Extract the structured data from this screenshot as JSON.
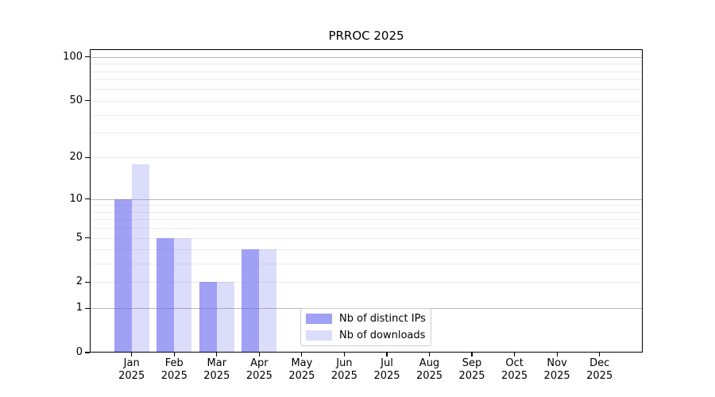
{
  "chart_data": {
    "type": "bar",
    "title": "PRROC 2025",
    "categories": [
      "Jan",
      "Feb",
      "Mar",
      "Apr",
      "May",
      "Jun",
      "Jul",
      "Aug",
      "Sep",
      "Oct",
      "Nov",
      "Dec"
    ],
    "category_year": "2025",
    "series": [
      {
        "name": "Nb of distinct IPs",
        "color": "rgba(102,102,238,0.62)",
        "values": [
          10,
          5,
          2,
          4,
          0,
          0,
          0,
          0,
          0,
          0,
          0,
          0
        ]
      },
      {
        "name": "Nb of downloads",
        "color": "rgba(102,102,238,0.23)",
        "values": [
          18,
          5,
          2,
          4,
          0,
          0,
          0,
          0,
          0,
          0,
          0,
          0
        ]
      }
    ],
    "y_scale": "log1p",
    "ylim": [
      0,
      113
    ],
    "y_ticks": [
      0,
      1,
      2,
      5,
      10,
      20,
      50,
      100
    ],
    "y_major_gridlines": [
      1,
      10,
      100
    ],
    "y_minor_gridlines": [
      2,
      3,
      4,
      5,
      6,
      7,
      8,
      9,
      20,
      30,
      40,
      50,
      60,
      70,
      80,
      90
    ],
    "grid": true,
    "legend_position": "lower center, inside plot"
  },
  "colors": {
    "background": "#ffffff",
    "axis": "#000000",
    "text": "#000000",
    "major_gridline": "#b8b8b8",
    "minor_gridline": "#ececec",
    "legend_border": "#cccccc",
    "legend_background": "#ffffff"
  }
}
